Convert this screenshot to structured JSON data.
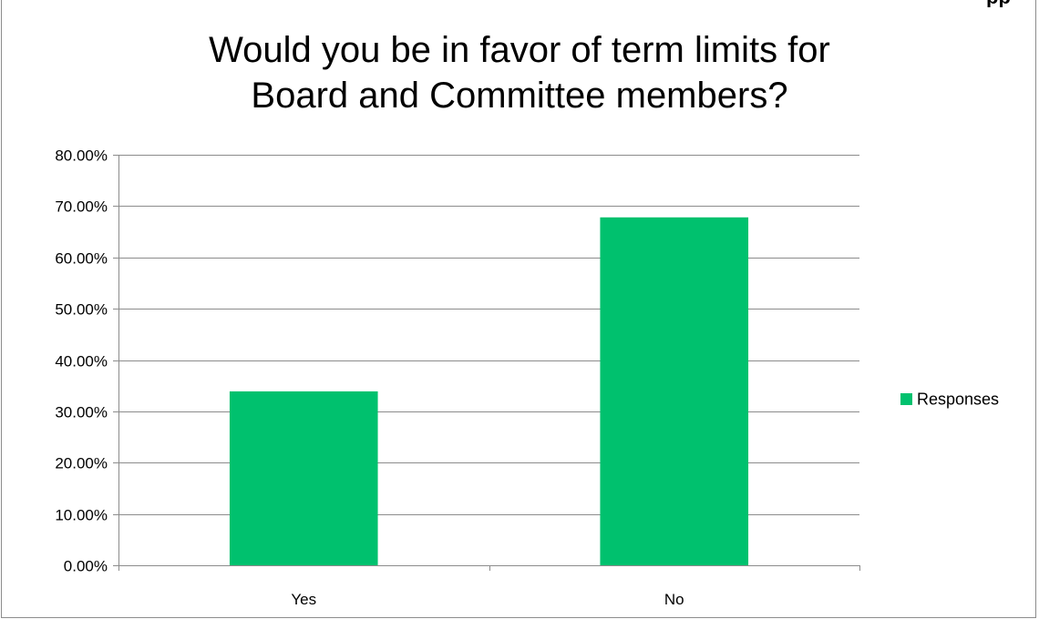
{
  "header_fragment": "pp",
  "chart_data": {
    "type": "bar",
    "title_lines": [
      "Would you be in favor of term limits for",
      "Board and Committee members?"
    ],
    "categories": [
      "Yes",
      "No"
    ],
    "series": [
      {
        "name": "Responses",
        "values": [
          0.3389,
          0.678
        ]
      }
    ],
    "ylim": [
      0,
      0.8
    ],
    "y_ticks": [
      0,
      0.1,
      0.2,
      0.3,
      0.4,
      0.5,
      0.6,
      0.7,
      0.8
    ],
    "y_tick_labels": [
      "0.00%",
      "10.00%",
      "20.00%",
      "30.00%",
      "40.00%",
      "50.00%",
      "60.00%",
      "70.00%",
      "80.00%"
    ],
    "grid": true,
    "legend_position": "right",
    "colors": {
      "bar": "#00c16e",
      "grid": "#8c8c8c",
      "axis": "#8c8c8c"
    }
  }
}
